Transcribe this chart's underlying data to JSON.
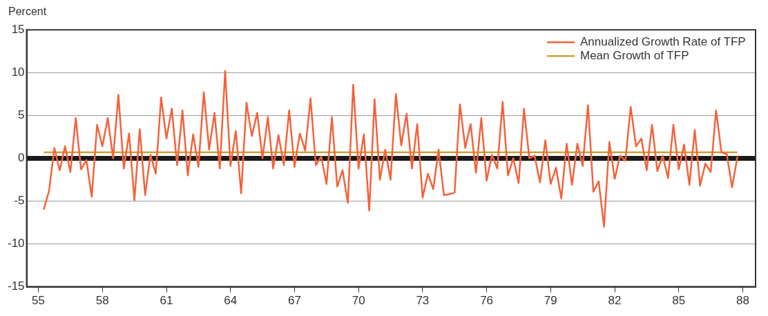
{
  "chart_data": {
    "type": "line",
    "ylabel": "Percent",
    "legend": "top right",
    "grid": "y",
    "xlim": [
      1954.45,
      1988.6
    ],
    "ylim": [
      -15,
      15
    ],
    "xticks": [
      {
        "value": 1955,
        "label": "55"
      },
      {
        "value": 1958,
        "label": "58"
      },
      {
        "value": 1961,
        "label": "61"
      },
      {
        "value": 1964,
        "label": "64"
      },
      {
        "value": 1967,
        "label": "67"
      },
      {
        "value": 1970,
        "label": "70"
      },
      {
        "value": 1973,
        "label": "73"
      },
      {
        "value": 1976,
        "label": "76"
      },
      {
        "value": 1979,
        "label": "79"
      },
      {
        "value": 1982,
        "label": "82"
      },
      {
        "value": 1985,
        "label": "85"
      },
      {
        "value": 1988,
        "label": "88"
      }
    ],
    "yticks": [
      -15,
      -10,
      -5,
      0,
      5,
      10,
      15
    ],
    "ref_lines": [
      {
        "axis": "y",
        "value": 0,
        "color": "#1a1a1a"
      }
    ],
    "series": [
      {
        "name": "Annualized Growth Rate of TFP",
        "color": "#f4623a",
        "x": [
          1955.25,
          1955.5,
          1955.75,
          1956,
          1956.25,
          1956.5,
          1956.75,
          1957,
          1957.25,
          1957.5,
          1957.75,
          1958,
          1958.25,
          1958.5,
          1958.75,
          1959,
          1959.25,
          1959.5,
          1959.75,
          1960,
          1960.25,
          1960.5,
          1960.75,
          1961,
          1961.25,
          1961.5,
          1961.75,
          1962,
          1962.25,
          1962.5,
          1962.75,
          1963,
          1963.25,
          1963.5,
          1963.75,
          1964,
          1964.25,
          1964.5,
          1964.75,
          1965,
          1965.25,
          1965.5,
          1965.75,
          1966,
          1966.25,
          1966.5,
          1966.75,
          1967,
          1967.25,
          1967.5,
          1967.75,
          1968,
          1968.25,
          1968.5,
          1968.75,
          1969,
          1969.25,
          1969.5,
          1969.75,
          1970,
          1970.25,
          1970.5,
          1970.75,
          1971,
          1971.25,
          1971.5,
          1971.75,
          1972,
          1972.25,
          1972.5,
          1972.75,
          1973,
          1973.25,
          1973.5,
          1973.75,
          1974,
          1974.25,
          1974.5,
          1974.75,
          1975,
          1975.25,
          1975.5,
          1975.75,
          1976,
          1976.25,
          1976.5,
          1976.75,
          1977,
          1977.25,
          1977.5,
          1977.75,
          1978,
          1978.25,
          1978.5,
          1978.75,
          1979,
          1979.25,
          1979.5,
          1979.75,
          1980,
          1980.25,
          1980.5,
          1980.75,
          1981,
          1981.25,
          1981.5,
          1981.75,
          1982,
          1982.25,
          1982.5,
          1982.75,
          1983,
          1983.25,
          1983.5,
          1983.75,
          1984,
          1984.25,
          1984.5,
          1984.75,
          1985,
          1985.25,
          1985.5,
          1985.75,
          1986,
          1986.25,
          1986.5,
          1986.75,
          1987,
          1987.25,
          1987.5,
          1987.75
        ],
        "values": [
          -6.0,
          -3.8,
          1.2,
          -1.4,
          1.4,
          -1.6,
          4.7,
          -1.3,
          -0.2,
          -4.5,
          3.9,
          1.4,
          4.7,
          0,
          7.4,
          -1.2,
          2.9,
          -4.9,
          3.4,
          -4.3,
          0.4,
          -1.8,
          7.1,
          2.3,
          5.8,
          -0.8,
          5.6,
          -2.0,
          2.8,
          -1.0,
          7.7,
          1.0,
          5.3,
          -1.2,
          10.2,
          -0.9,
          3.2,
          -4.1,
          6.5,
          2.6,
          5.3,
          0,
          4.8,
          -1.2,
          2.7,
          -0.8,
          5.6,
          -1.0,
          2.9,
          0.9,
          7.0,
          -0.8,
          0.2,
          -3.0,
          4.8,
          -3.3,
          -1.4,
          -5.2,
          8.6,
          -1.2,
          2.8,
          -6.1,
          6.9,
          -2.5,
          1.0,
          -2.5,
          7.5,
          1.5,
          5.2,
          -1.2,
          4.0,
          -4.6,
          -1.8,
          -3.6,
          1.0,
          -4.3,
          -4.2,
          -4.0,
          6.3,
          1.2,
          4.0,
          -1.7,
          4.7,
          -2.6,
          0.4,
          -1.2,
          6.6,
          -2.0,
          0,
          -2.9,
          5.8,
          0,
          0.3,
          -2.8,
          2.1,
          -3.0,
          -1.1,
          -4.7,
          1.7,
          -3.1,
          1.7,
          -0.9,
          6.2,
          -3.9,
          -2.7,
          -8.0,
          1.9,
          -2.4,
          0.3,
          -0.3,
          6.0,
          1.4,
          2.3,
          -1.4,
          3.9,
          -1.5,
          0.3,
          -2.3,
          3.9,
          -1.3,
          1.6,
          -3.1,
          3.3,
          -3.2,
          -0.6,
          -1.6,
          5.6,
          0.7,
          0.5,
          -3.4,
          0.2
        ]
      },
      {
        "name": "Mean Growth of TFP",
        "color": "#c9a43a",
        "x": [
          1955.25,
          1987.75
        ],
        "values": [
          0.7,
          0.7
        ]
      }
    ]
  }
}
